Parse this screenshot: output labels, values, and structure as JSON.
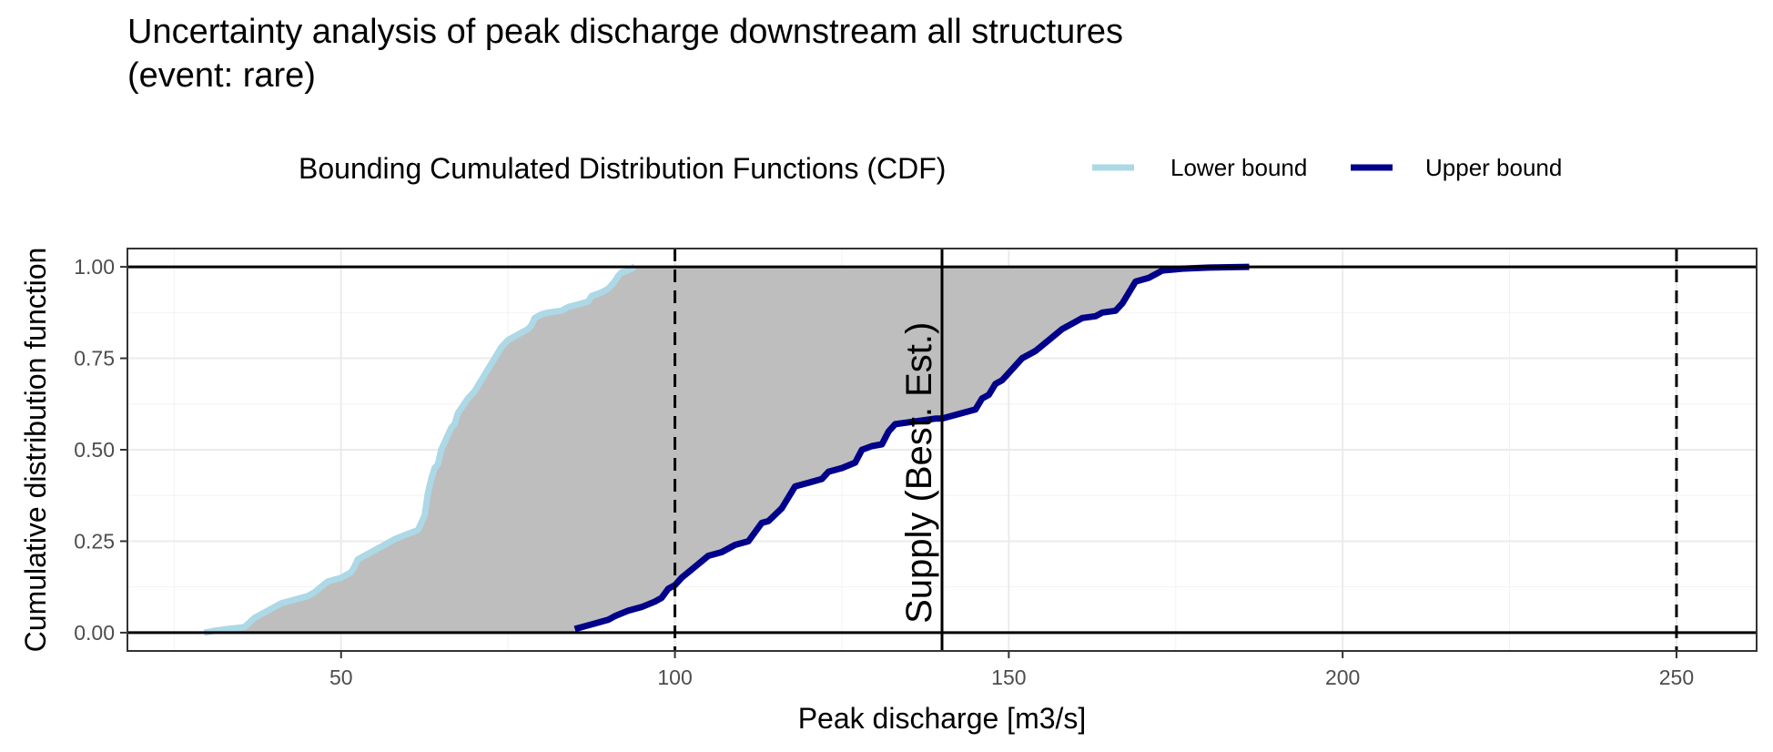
{
  "chart_data": {
    "type": "line",
    "title": "Uncertainty analysis of peak discharge downstream all structures",
    "subtitle": "(event: rare)",
    "xlabel": "Peak discharge [m3/s]",
    "ylabel": "Cumulative distribution function",
    "xlim": [
      18,
      262
    ],
    "ylim": [
      -0.05,
      1.05
    ],
    "x_ticks": [
      50,
      100,
      150,
      200,
      250
    ],
    "x_tick_labels": [
      "50",
      "100",
      "150",
      "200",
      "250"
    ],
    "y_ticks": [
      0,
      0.25,
      0.5,
      0.75,
      1
    ],
    "y_tick_labels": [
      "0.00",
      "0.25",
      "0.50",
      "0.75",
      "1.00"
    ],
    "grid": true,
    "legend": {
      "title": "Bounding Cumulated Distribution Functions (CDF)",
      "placement": "top"
    },
    "band_fill": "#bebebe",
    "series": [
      {
        "name": "Lower bound",
        "color": "#add8e6",
        "x": [
          29.5,
          31,
          33,
          35.5,
          37,
          39,
          41,
          43,
          45,
          46,
          47,
          48,
          50,
          51.5,
          52,
          52.5,
          54,
          56,
          58,
          60,
          61.5,
          62,
          62.5,
          63,
          63.5,
          64,
          64.5,
          65,
          66,
          66.5,
          67,
          67.5,
          69,
          70,
          71,
          72,
          73,
          74,
          75,
          76,
          77,
          78,
          78.5,
          79,
          80,
          81,
          83,
          84,
          86,
          87,
          87.5,
          89,
          90,
          91,
          91.5,
          92,
          93,
          94
        ],
        "y": [
          0.0,
          0.005,
          0.01,
          0.015,
          0.04,
          0.06,
          0.08,
          0.09,
          0.1,
          0.11,
          0.125,
          0.14,
          0.15,
          0.165,
          0.18,
          0.2,
          0.215,
          0.235,
          0.255,
          0.27,
          0.28,
          0.3,
          0.32,
          0.38,
          0.42,
          0.45,
          0.46,
          0.5,
          0.54,
          0.56,
          0.57,
          0.6,
          0.64,
          0.66,
          0.69,
          0.72,
          0.75,
          0.78,
          0.8,
          0.81,
          0.82,
          0.83,
          0.84,
          0.86,
          0.87,
          0.875,
          0.88,
          0.89,
          0.9,
          0.905,
          0.92,
          0.93,
          0.94,
          0.96,
          0.975,
          0.985,
          0.99,
          1.0
        ]
      },
      {
        "name": "Upper bound",
        "color": "#00008b",
        "x": [
          85,
          86,
          88,
          90,
          91,
          93,
          95,
          97,
          98,
          99,
          100,
          101,
          103,
          105,
          107,
          109,
          111,
          113,
          114,
          116,
          117,
          118,
          120,
          122,
          123,
          125,
          127,
          128,
          129.5,
          131,
          132,
          133,
          135,
          137,
          139,
          140,
          141,
          143,
          145,
          146,
          147,
          148,
          149,
          150,
          152,
          154,
          156,
          158,
          160,
          161,
          163,
          164,
          166,
          167,
          169,
          171,
          173,
          176,
          180,
          186
        ],
        "y": [
          0.01,
          0.015,
          0.025,
          0.035,
          0.045,
          0.06,
          0.07,
          0.085,
          0.095,
          0.12,
          0.13,
          0.15,
          0.18,
          0.21,
          0.22,
          0.24,
          0.25,
          0.3,
          0.305,
          0.34,
          0.37,
          0.4,
          0.41,
          0.42,
          0.44,
          0.45,
          0.465,
          0.5,
          0.51,
          0.515,
          0.55,
          0.57,
          0.575,
          0.58,
          0.585,
          0.585,
          0.59,
          0.6,
          0.61,
          0.64,
          0.65,
          0.68,
          0.69,
          0.71,
          0.75,
          0.77,
          0.8,
          0.83,
          0.85,
          0.86,
          0.865,
          0.875,
          0.88,
          0.9,
          0.96,
          0.97,
          0.99,
          0.995,
          0.998,
          1.0
        ]
      }
    ],
    "reference_lines": {
      "horizontal": [
        0,
        1
      ],
      "dashed_vertical": [
        100,
        250
      ],
      "solid_vertical": 140,
      "solid_vertical_label": "Supply (Best. Est.)"
    }
  }
}
